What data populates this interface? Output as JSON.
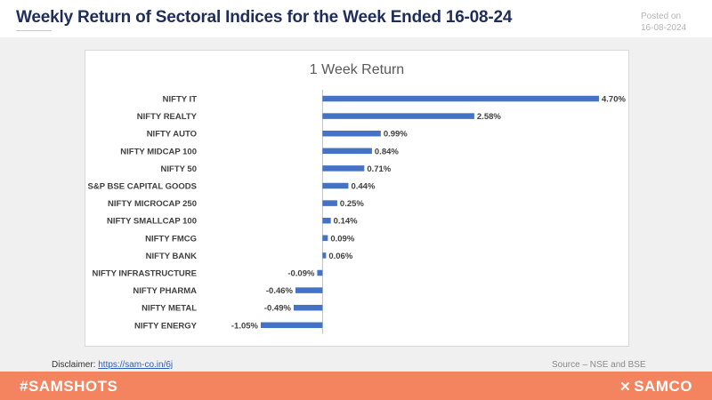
{
  "header": {
    "title": "Weekly Return of Sectoral Indices for the Week Ended 16-08-24",
    "posted_label": "Posted on",
    "posted_date": "16-08-2024"
  },
  "chart_data": {
    "type": "bar",
    "orientation": "horizontal",
    "title": "1 Week Return",
    "categories": [
      "NIFTY IT",
      "NIFTY REALTY",
      "NIFTY AUTO",
      "NIFTY MIDCAP 100",
      "NIFTY 50",
      "S&P BSE CAPITAL GOODS",
      "NIFTY MICROCAP 250",
      "NIFTY SMALLCAP 100",
      "NIFTY FMCG",
      "NIFTY BANK",
      "NIFTY INFRASTRUCTURE",
      "NIFTY PHARMA",
      "NIFTY METAL",
      "NIFTY ENERGY"
    ],
    "values": [
      4.7,
      2.58,
      0.99,
      0.84,
      0.71,
      0.44,
      0.25,
      0.14,
      0.09,
      0.06,
      -0.09,
      -0.46,
      -0.49,
      -1.05
    ],
    "data_labels": [
      "4.70%",
      "2.58%",
      "0.99%",
      "0.84%",
      "0.71%",
      "0.44%",
      "0.25%",
      "0.14%",
      "0.09%",
      "0.06%",
      "-0.09%",
      "-0.46%",
      "-0.49%",
      "-1.05%"
    ],
    "xlim": [
      -1.05,
      4.7
    ],
    "grid": false,
    "legend": "none",
    "bar_color": "#4472c4"
  },
  "footer": {
    "disclaimer_label": "Disclaimer:",
    "disclaimer_link": "https://sam-co.in/6j",
    "source": "Source – NSE and BSE",
    "hashtag": "#SAMSHOTS",
    "brand": "SAMCO"
  }
}
